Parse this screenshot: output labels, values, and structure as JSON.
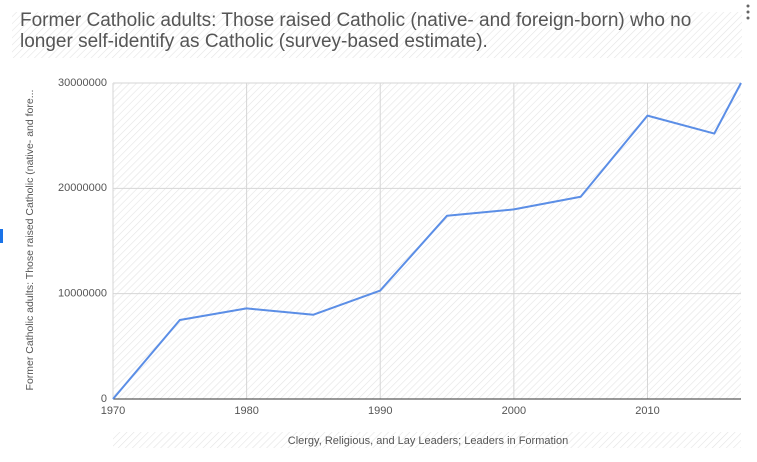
{
  "chart_data": {
    "type": "line",
    "title": "Former Catholic adults: Those raised Catholic (native- and foreign-born) who no longer self-identify as Catholic (survey-based estimate).",
    "y_label": "Former Catholic adults: Those raised Catholic (native- and fore...",
    "x_label": "Clergy, Religious, and Lay Leaders; Leaders in Formation",
    "x": [
      1970,
      1975,
      1980,
      1985,
      1990,
      1995,
      2000,
      2005,
      2010,
      2015,
      2017
    ],
    "series": [
      {
        "name": "Former Catholic adults",
        "color": "#5b8ee6",
        "values": [
          0,
          7500000,
          8600000,
          8000000,
          10300000,
          17400000,
          18000000,
          19200000,
          26900000,
          25200000,
          30000000
        ]
      }
    ],
    "xlim": [
      1970,
      2017
    ],
    "xticks": [
      1970,
      1980,
      1990,
      2000,
      2010
    ],
    "ylim": [
      0,
      30000000
    ],
    "yticks": [
      0,
      10000000,
      20000000,
      30000000
    ],
    "grid": true
  }
}
